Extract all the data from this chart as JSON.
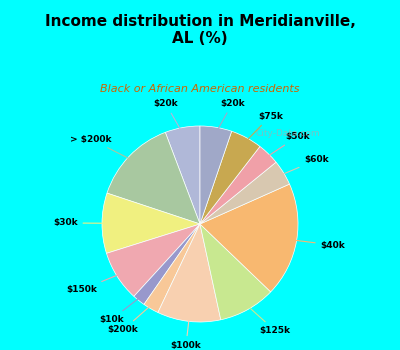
{
  "title": "Income distribution in Meridianville,\nAL (%)",
  "subtitle": "Black or African American residents",
  "background_color": "#00FFFF",
  "chart_bg_top": "#d0f0e8",
  "chart_bg_bottom": "#e8f8f0",
  "watermark": "City-Data.com",
  "slices": [
    {
      "label": "$20k",
      "value": 5.5,
      "color": "#b0b8d8"
    },
    {
      "label": "> $200k",
      "value": 13.5,
      "color": "#a8c8a0"
    },
    {
      "label": "$30k",
      "value": 9.5,
      "color": "#f0f080"
    },
    {
      "label": "$150k",
      "value": 8.0,
      "color": "#f0a8b0"
    },
    {
      "label": "$10k",
      "value": 2.0,
      "color": "#9898cc"
    },
    {
      "label": "$200k",
      "value": 2.5,
      "color": "#f8c898"
    },
    {
      "label": "$100k",
      "value": 10.0,
      "color": "#f8d0b0"
    },
    {
      "label": "$125k",
      "value": 9.0,
      "color": "#c8e890"
    },
    {
      "label": "$40k",
      "value": 18.0,
      "color": "#f8b870"
    },
    {
      "label": "$60k",
      "value": 4.0,
      "color": "#d8c8b0"
    },
    {
      "label": "$50k",
      "value": 3.5,
      "color": "#f0a0a8"
    },
    {
      "label": "$75k",
      "value": 5.0,
      "color": "#c8a850"
    },
    {
      "label": "$20k_b",
      "value": 5.0,
      "color": "#a0a8c8"
    }
  ],
  "label_map": {
    "$20k_b": "$20k"
  }
}
